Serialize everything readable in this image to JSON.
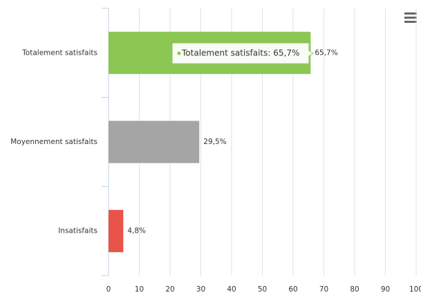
{
  "chart_data": {
    "type": "bar",
    "orientation": "horizontal",
    "categories": [
      "Totalement satisfaits",
      "Moyennement satisfaits",
      "Insatisfaits"
    ],
    "values": [
      65.7,
      29.5,
      4.8
    ],
    "value_labels": [
      "65,7%",
      "29,5%",
      "4,8%"
    ],
    "colors": [
      "#8cc653",
      "#a5a5a5",
      "#e8534a"
    ],
    "xlim": [
      0,
      100
    ],
    "xticks": [
      0,
      10,
      20,
      30,
      40,
      50,
      60,
      70,
      80,
      90,
      100
    ],
    "grid": true,
    "tooltip": "Totalement satisfaits: 65,7%"
  }
}
